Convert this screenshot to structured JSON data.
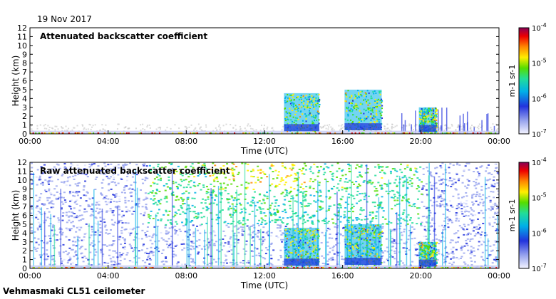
{
  "header": {
    "date": "19 Nov 2017"
  },
  "footer": {
    "instrument": "Vehmasmaki CL51 ceilometer"
  },
  "chart_data": [
    {
      "type": "heatmap",
      "title": "Attenuated backscatter coefficient",
      "xlabel": "Time (UTC)",
      "ylabel": "Height (km)",
      "x_ticks": [
        "00:00",
        "04:00",
        "08:00",
        "12:00",
        "16:00",
        "20:00",
        "00:00"
      ],
      "y_ticks": [
        "0",
        "1",
        "2",
        "3",
        "4",
        "5",
        "6",
        "7",
        "8",
        "9",
        "10",
        "11",
        "12"
      ],
      "xlim_hours": [
        0,
        24
      ],
      "ylim_km": [
        0,
        12
      ],
      "colorbar": {
        "scale": "log",
        "ticks": [
          "10-7",
          "10-6",
          "10-5",
          "10-4"
        ],
        "unit": "m-1 sr-1"
      },
      "cloud_features": [
        {
          "start_h": 13.0,
          "end_h": 14.8,
          "top_km": 4.6,
          "base_km": 0.3
        },
        {
          "start_h": 16.1,
          "end_h": 18.0,
          "top_km": 5.0,
          "base_km": 0.4
        },
        {
          "start_h": 19.9,
          "end_h": 20.8,
          "top_km": 3.0,
          "base_km": 0.2
        }
      ]
    },
    {
      "type": "heatmap",
      "title": "Raw attenuated backscatter coefficient",
      "xlabel": "Time (UTC)",
      "ylabel": "Height (km)",
      "x_ticks": [
        "00:00",
        "04:00",
        "08:00",
        "12:00",
        "16:00",
        "20:00",
        "00:00"
      ],
      "y_ticks": [
        "0",
        "1",
        "2",
        "3",
        "4",
        "5",
        "6",
        "7",
        "8",
        "9",
        "10",
        "11",
        "12"
      ],
      "xlim_hours": [
        0,
        24
      ],
      "ylim_km": [
        0,
        12
      ],
      "colorbar": {
        "scale": "log",
        "ticks": [
          "10-7",
          "10-6",
          "10-5",
          "10-4"
        ],
        "unit": "m-1 sr-1"
      },
      "cloud_features": [
        {
          "start_h": 13.0,
          "end_h": 14.8,
          "top_km": 4.6,
          "base_km": 0.3
        },
        {
          "start_h": 16.1,
          "end_h": 18.0,
          "top_km": 5.0,
          "base_km": 0.4
        },
        {
          "start_h": 19.9,
          "end_h": 20.8,
          "top_km": 3.0,
          "base_km": 0.2
        }
      ]
    }
  ]
}
